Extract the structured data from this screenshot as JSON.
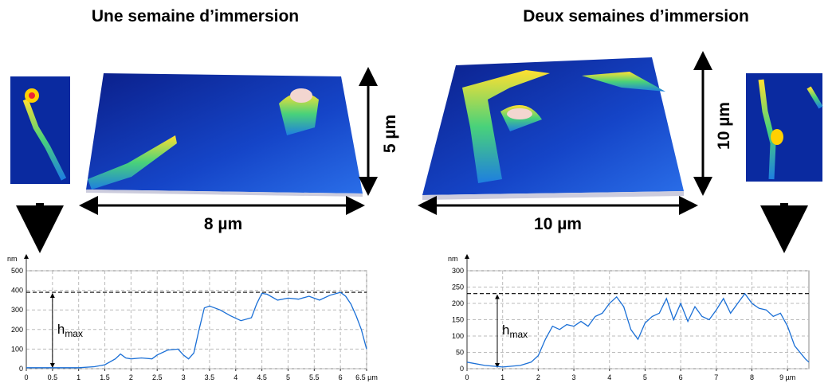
{
  "panels": [
    {
      "title": "Une semaine d’immersion",
      "width_label": "8 µm",
      "height_label": "5 µm"
    },
    {
      "title": "Deux semaines d’immersion",
      "width_label": "10 µm",
      "height_label": "10 µm"
    }
  ],
  "chart_data": [
    {
      "type": "line",
      "y_unit": "nm",
      "color": "#1a6fd6",
      "grid": true,
      "xlim": [
        0,
        6.5
      ],
      "ylim": [
        0,
        500
      ],
      "xticks": [
        0,
        0.5,
        1,
        1.5,
        2,
        2.5,
        3,
        3.5,
        4,
        4.5,
        5,
        5.5,
        6,
        {
          "value": 6.5,
          "label": "6.5 µm"
        }
      ],
      "yticks": [
        0,
        100,
        200,
        300,
        400,
        500
      ],
      "hmax": 390,
      "hmax_x": 0.5,
      "annotation": {
        "text": "h",
        "subscript": "max"
      },
      "x": [
        0,
        0.5,
        1,
        1.3,
        1.5,
        1.7,
        1.8,
        1.9,
        2.0,
        2.2,
        2.4,
        2.5,
        2.7,
        2.9,
        3.0,
        3.1,
        3.2,
        3.3,
        3.4,
        3.5,
        3.7,
        3.9,
        4.1,
        4.3,
        4.4,
        4.5,
        4.6,
        4.8,
        5.0,
        5.2,
        5.4,
        5.6,
        5.8,
        6.0,
        6.1,
        6.2,
        6.3,
        6.4,
        6.5
      ],
      "values": [
        5,
        5,
        5,
        10,
        20,
        50,
        75,
        55,
        50,
        55,
        50,
        70,
        95,
        100,
        70,
        50,
        80,
        200,
        310,
        320,
        300,
        270,
        245,
        260,
        330,
        385,
        380,
        350,
        360,
        355,
        370,
        350,
        375,
        390,
        370,
        330,
        270,
        200,
        100
      ]
    },
    {
      "type": "line",
      "y_unit": "nm",
      "color": "#1a6fd6",
      "grid": true,
      "xlim": [
        0,
        9.6
      ],
      "ylim": [
        0,
        300
      ],
      "xticks": [
        0,
        1,
        2,
        3,
        4,
        5,
        6,
        7,
        8,
        {
          "value": 9,
          "label": "9 µm"
        }
      ],
      "yticks": [
        0,
        50,
        100,
        150,
        200,
        250,
        300
      ],
      "hmax": 230,
      "hmax_x": 0.85,
      "annotation": {
        "text": "h",
        "subscript": "max"
      },
      "x": [
        0,
        0.5,
        1,
        1.5,
        1.8,
        2.0,
        2.2,
        2.4,
        2.6,
        2.8,
        3.0,
        3.2,
        3.4,
        3.6,
        3.8,
        4.0,
        4.2,
        4.4,
        4.6,
        4.8,
        5.0,
        5.2,
        5.4,
        5.6,
        5.8,
        6.0,
        6.2,
        6.4,
        6.6,
        6.8,
        7.0,
        7.2,
        7.4,
        7.6,
        7.8,
        8.0,
        8.2,
        8.4,
        8.6,
        8.8,
        9.0,
        9.2,
        9.5,
        9.6
      ],
      "values": [
        20,
        10,
        5,
        10,
        20,
        40,
        90,
        130,
        120,
        135,
        130,
        145,
        130,
        160,
        170,
        200,
        220,
        190,
        120,
        90,
        140,
        160,
        170,
        215,
        150,
        200,
        145,
        190,
        160,
        150,
        180,
        215,
        170,
        200,
        230,
        200,
        185,
        180,
        160,
        170,
        130,
        70,
        30,
        20
      ]
    }
  ]
}
